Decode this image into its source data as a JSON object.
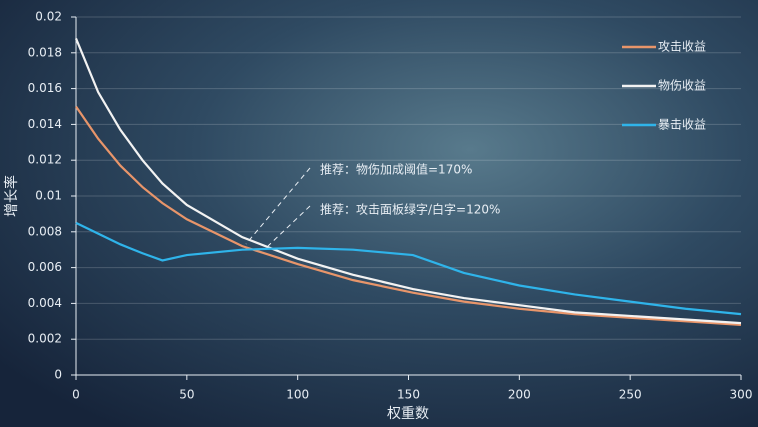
{
  "chart_data": {
    "type": "line",
    "x_label": "权重数",
    "y_label": "增长率",
    "x": [
      0,
      10,
      20,
      30,
      39,
      50,
      75,
      100,
      125,
      152,
      175,
      200,
      225,
      250,
      275,
      300
    ],
    "series": [
      {
        "name": "攻击收益",
        "color": "#e8956a",
        "values": [
          0.015,
          0.0132,
          0.0117,
          0.0105,
          0.0096,
          0.0087,
          0.0072,
          0.0062,
          0.0053,
          0.0046,
          0.0041,
          0.0037,
          0.0034,
          0.0032,
          0.003,
          0.0028
        ]
      },
      {
        "name": "物伤收益",
        "color": "#f2f2f2",
        "values": [
          0.0188,
          0.0158,
          0.0137,
          0.012,
          0.0107,
          0.0095,
          0.0077,
          0.0065,
          0.0056,
          0.0048,
          0.0043,
          0.0039,
          0.0035,
          0.0033,
          0.0031,
          0.0029
        ]
      },
      {
        "name": "暴击收益",
        "color": "#2fb4ea",
        "values": [
          0.0085,
          0.0079,
          0.0073,
          0.0068,
          0.0064,
          0.0067,
          0.007,
          0.0071,
          0.007,
          0.0067,
          0.0057,
          0.005,
          0.0045,
          0.0041,
          0.0037,
          0.0034
        ]
      }
    ],
    "xlim": [
      0,
      300
    ],
    "xticks": [
      0,
      50,
      100,
      150,
      200,
      250,
      300
    ],
    "ylim": [
      0,
      0.02
    ],
    "yticks": [
      0,
      0.002,
      0.004,
      0.006,
      0.008,
      0.01,
      0.012,
      0.014,
      0.016,
      0.018,
      0.02
    ],
    "grid": true,
    "legend": "top-right",
    "annotations": [
      "推荐：物伤加成阈值=170%",
      "推荐：攻击面板绿字/白字=120%"
    ]
  }
}
